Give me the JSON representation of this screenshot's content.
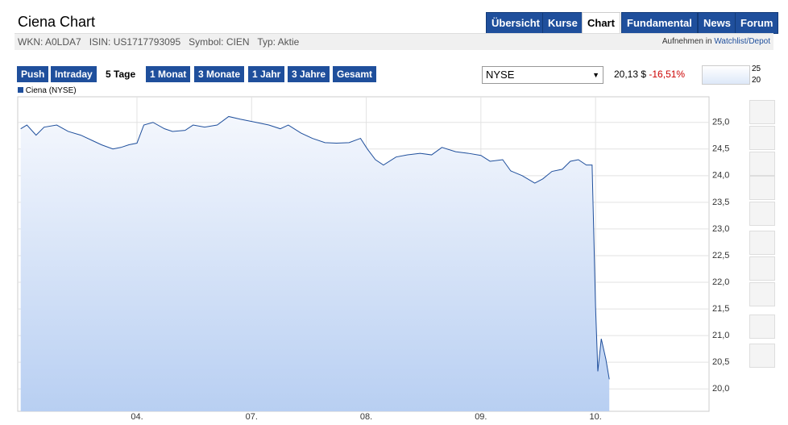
{
  "header": {
    "title": "Ciena Chart",
    "tabs": [
      "Übersicht",
      "Kurse",
      "Chart",
      "Fundamental",
      "News",
      "Forum"
    ]
  },
  "info": [
    "WKN: A0LDA7",
    "ISIN: US1717793095",
    "Symbol: CIEN",
    "Typ: Aktie"
  ],
  "watchlist": {
    "label": "Aufnehmen in",
    "link": "Watchlist/Depot"
  },
  "ranges": [
    "Push",
    "Intraday",
    "5 Tage",
    "1 Monat",
    "3 Monate",
    "1 Jahr",
    "3 Jahre",
    "Gesamt"
  ],
  "exchange": "NYSE",
  "quote": {
    "price": "20,13 $",
    "change": "-16,51%"
  },
  "mini_chart": [
    "25",
    "20"
  ],
  "chart_data": {
    "type": "area",
    "xlim": [
      -0.04,
      5.99
    ],
    "ylim": [
      19.58,
      25.48
    ],
    "xticks": [
      {
        "value": 1,
        "label": "04."
      },
      {
        "value": 2,
        "label": "07."
      },
      {
        "value": 3,
        "label": "08."
      },
      {
        "value": 4,
        "label": "09."
      },
      {
        "value": 5,
        "label": "10."
      }
    ],
    "yticks": [
      {
        "value": 20,
        "label": "20,0"
      },
      {
        "value": 20.5,
        "label": "20,5"
      },
      {
        "value": 21,
        "label": "21,0"
      },
      {
        "value": 21.5,
        "label": "21,5"
      },
      {
        "value": 22,
        "label": "22,0"
      },
      {
        "value": 22.5,
        "label": "22,5"
      },
      {
        "value": 23,
        "label": "23,0"
      },
      {
        "value": 23.5,
        "label": "23,5"
      },
      {
        "value": 24,
        "label": "24,0"
      },
      {
        "value": 24.5,
        "label": "24,5"
      },
      {
        "value": 25,
        "label": "25,0"
      }
    ],
    "grid": true,
    "series": [
      {
        "name": "Ciena (NYSE)",
        "color": "#1f4f9c",
        "x": [
          -0.014,
          0.04,
          0.12,
          0.19,
          0.3,
          0.4,
          0.51,
          0.62,
          0.69,
          0.79,
          0.86,
          0.93,
          1.0,
          1.06,
          1.14,
          1.24,
          1.31,
          1.42,
          1.49,
          1.59,
          1.7,
          1.8,
          1.9,
          2.04,
          2.15,
          2.25,
          2.32,
          2.43,
          2.53,
          2.64,
          2.74,
          2.85,
          2.95,
          3.01,
          3.08,
          3.15,
          3.26,
          3.36,
          3.47,
          3.57,
          3.66,
          3.78,
          3.89,
          4.0,
          4.08,
          4.19,
          4.26,
          4.36,
          4.47,
          4.54,
          4.62,
          4.71,
          4.78,
          4.85,
          4.92,
          4.97,
          5.0,
          5.02,
          5.05,
          5.09,
          5.12
        ],
        "values": [
          24.88,
          24.95,
          24.76,
          24.91,
          24.95,
          24.83,
          24.76,
          24.65,
          24.58,
          24.5,
          24.53,
          24.58,
          24.61,
          24.95,
          25.0,
          24.88,
          24.83,
          24.85,
          24.95,
          24.91,
          24.95,
          25.11,
          25.06,
          25.0,
          24.95,
          24.88,
          24.95,
          24.8,
          24.7,
          24.62,
          24.61,
          24.62,
          24.7,
          24.5,
          24.3,
          24.2,
          24.35,
          24.39,
          24.42,
          24.39,
          24.53,
          24.45,
          24.42,
          24.38,
          24.27,
          24.3,
          24.09,
          24.0,
          23.86,
          23.94,
          24.08,
          24.12,
          24.27,
          24.3,
          24.2,
          24.2,
          21.55,
          20.33,
          20.94,
          20.56,
          20.18
        ]
      }
    ]
  }
}
